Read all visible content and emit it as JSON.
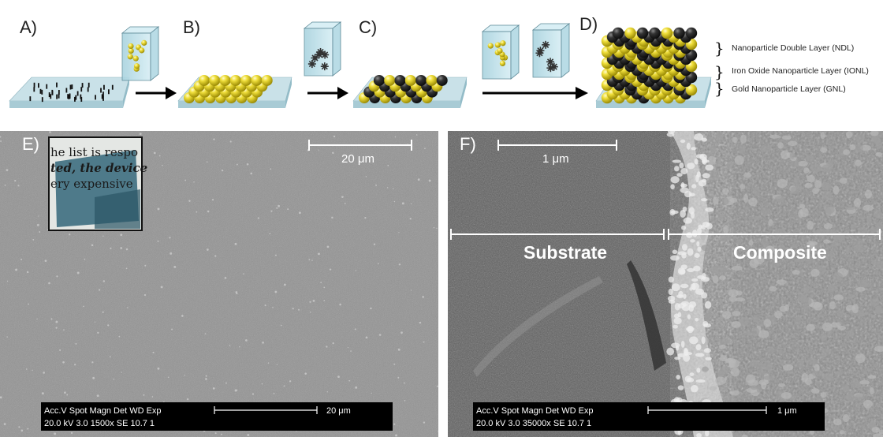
{
  "panels": {
    "a": "A)",
    "b": "B)",
    "c": "C)",
    "d": "D)",
    "e": "E)",
    "f": "F)"
  },
  "legend": {
    "ndl": "Nanoparticle Double Layer (NDL)",
    "ionl": "Iron Oxide Nanoparticle Layer (IONL)",
    "gnl": "Gold Nanoparticle Layer (GNL)"
  },
  "sem_e": {
    "scale_label": "20 μm",
    "inset_lines": [
      "he list is respo",
      "ted, the device",
      "ery expensive"
    ],
    "info_header": "Acc.V  Spot Magn    Det  WD  Exp",
    "info_values": "20.0 kV 3.0   1500x   SE   10.7  1",
    "info_scale": "20 μm"
  },
  "sem_f": {
    "scale_label": "1 μm",
    "substrate_label": "Substrate",
    "composite_label": "Composite",
    "info_header": "Acc.V  Spot Magn    Det  WD  Exp",
    "info_values": "20.0 kV 3.0  35000x  SE   10.7  1",
    "info_scale": "1 μm"
  },
  "colors": {
    "gold": "#e6d21c",
    "iron_oxide": "#2b2b2b",
    "substrate": "#bcd7df",
    "sem_gray": "#8a8a8a"
  }
}
